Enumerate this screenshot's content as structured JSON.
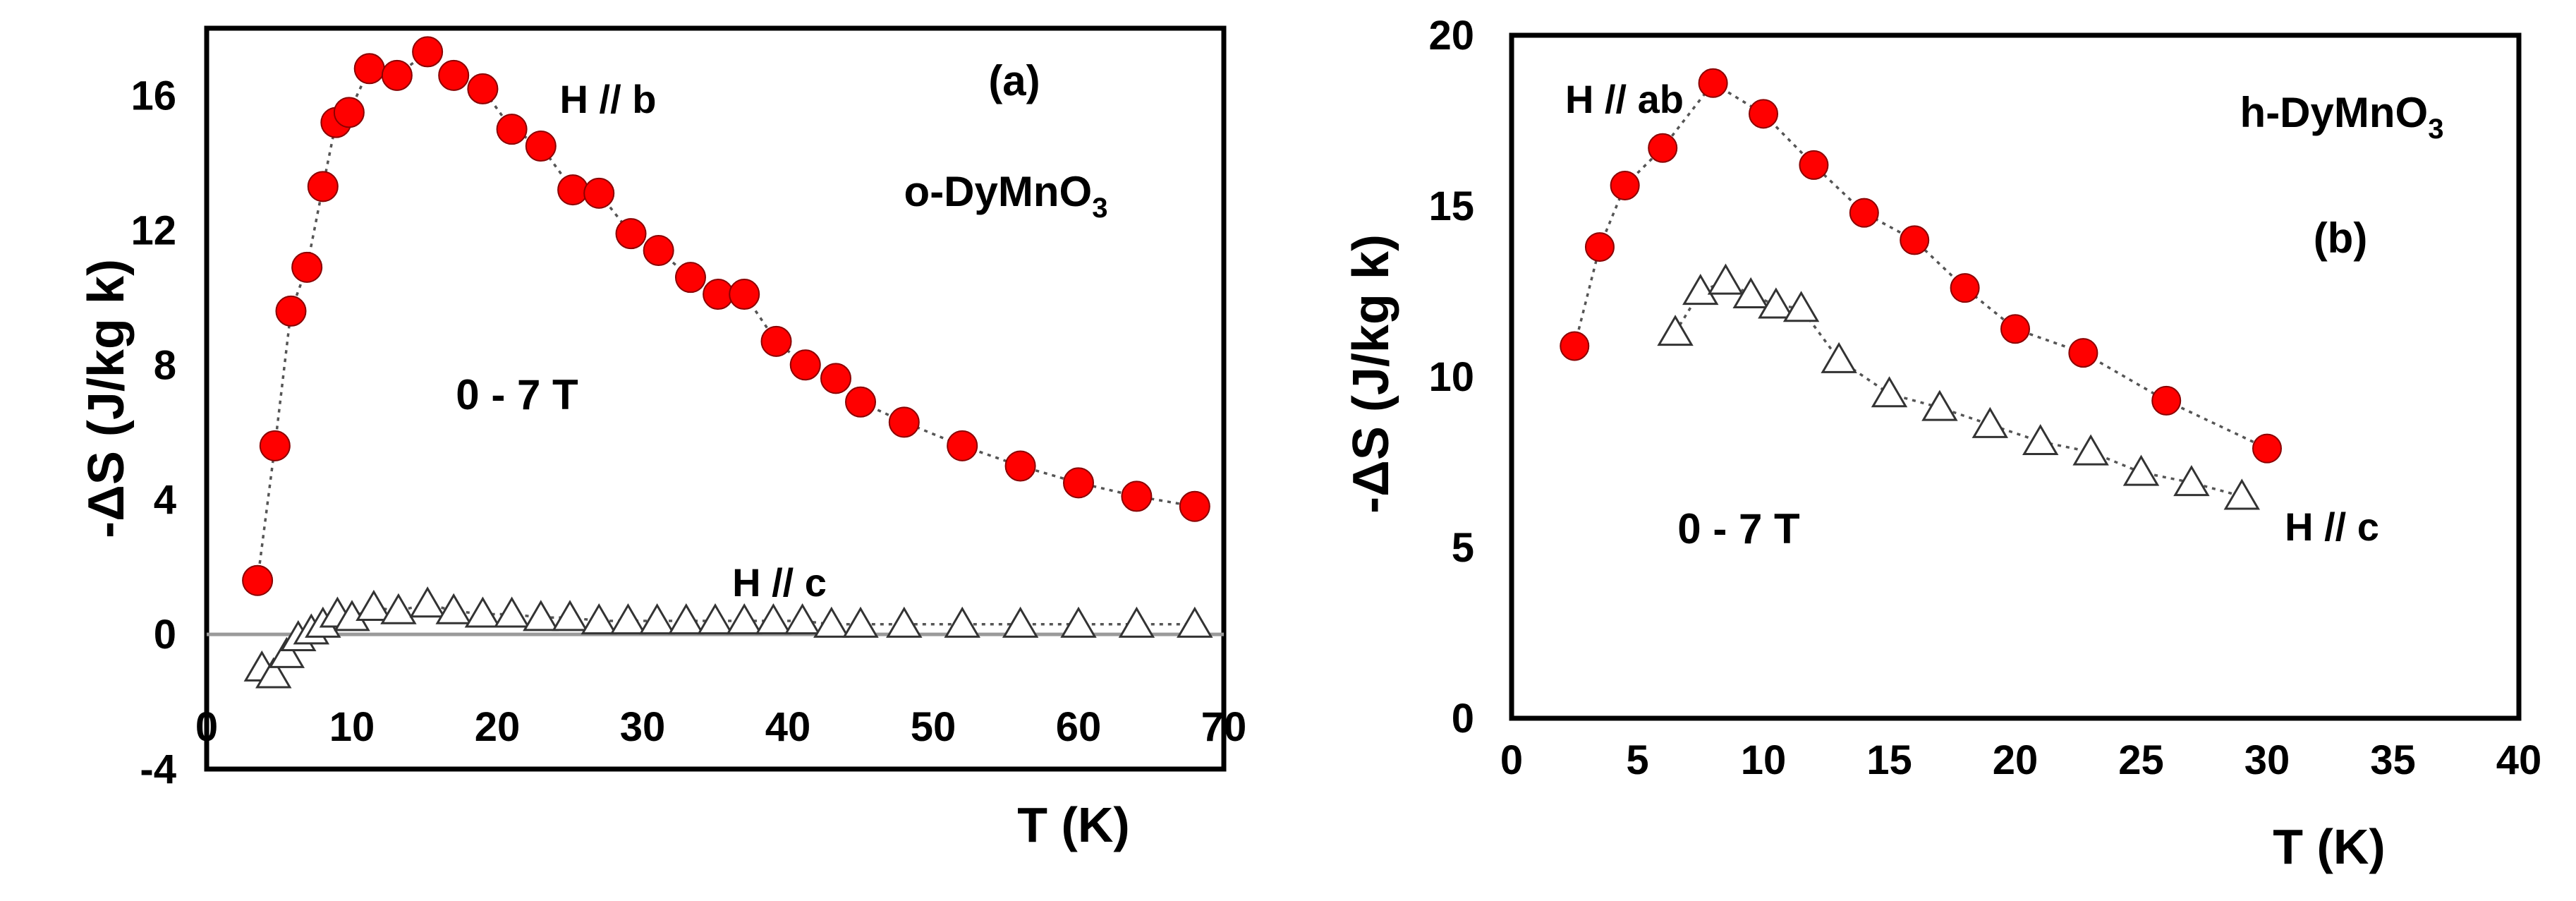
{
  "chart_data": [
    {
      "panel": "(a)",
      "type": "scatter",
      "xlabel": "T (K)",
      "ylabel": "-ΔS (J/kg k)",
      "xlim": [
        0,
        70
      ],
      "ylim": [
        -4,
        18
      ],
      "xticks": [
        0,
        10,
        20,
        30,
        40,
        50,
        60,
        70
      ],
      "yticks": [
        -4,
        0,
        4,
        8,
        12,
        16
      ],
      "zero_line": true,
      "annotations": {
        "panel_label": "(a)",
        "compound_prefix": "o-DyMnO",
        "compound_sub": "3",
        "field": "0 - 7 T"
      },
      "series": [
        {
          "name": "H // b",
          "marker": "circle",
          "color": "#ff0000",
          "x": [
            3.5,
            4.7,
            5.8,
            6.9,
            8.0,
            8.9,
            9.8,
            11.2,
            13.1,
            15.2,
            17.0,
            19.0,
            21.0,
            23.0,
            25.2,
            27.0,
            29.2,
            31.1,
            33.3,
            35.2,
            37.0,
            39.2,
            41.2,
            43.3,
            45.0,
            48.0,
            52.0,
            56.0,
            60.0,
            64.0,
            68.0
          ],
          "y": [
            1.6,
            5.6,
            9.6,
            10.9,
            13.3,
            15.2,
            15.5,
            16.8,
            16.6,
            17.3,
            16.6,
            16.2,
            15.0,
            14.5,
            13.2,
            13.1,
            11.9,
            11.4,
            10.6,
            10.1,
            10.1,
            8.7,
            8.0,
            7.6,
            6.9,
            6.3,
            5.6,
            5.0,
            4.5,
            4.1,
            3.8
          ]
        },
        {
          "name": "H // c",
          "marker": "triangle",
          "color": "#ffffff",
          "x": [
            3.8,
            4.6,
            5.5,
            6.3,
            7.2,
            8.0,
            9.0,
            10.0,
            11.5,
            13.2,
            15.2,
            17.0,
            19.0,
            21.0,
            23.0,
            25.0,
            27.0,
            29.0,
            31.0,
            33.0,
            35.0,
            37.0,
            39.0,
            41.0,
            43.0,
            45.0,
            48.0,
            52.0,
            56.0,
            60.0,
            64.0,
            68.0
          ],
          "y": [
            -1.0,
            -1.2,
            -0.6,
            -0.1,
            0.1,
            0.3,
            0.6,
            0.5,
            0.8,
            0.7,
            0.9,
            0.7,
            0.6,
            0.6,
            0.5,
            0.5,
            0.4,
            0.4,
            0.4,
            0.4,
            0.4,
            0.4,
            0.4,
            0.4,
            0.3,
            0.3,
            0.3,
            0.3,
            0.3,
            0.3,
            0.3,
            0.3
          ]
        }
      ]
    },
    {
      "panel": "(b)",
      "type": "scatter",
      "xlabel": "T (K)",
      "ylabel": "-ΔS (J/kg k)",
      "xlim": [
        0,
        40
      ],
      "ylim": [
        0,
        20
      ],
      "xticks": [
        0,
        5,
        10,
        15,
        20,
        25,
        30,
        35,
        40
      ],
      "yticks": [
        0,
        5,
        10,
        15,
        20
      ],
      "zero_line": false,
      "annotations": {
        "panel_label": "(b)",
        "compound_prefix": "h-DyMnO",
        "compound_sub": "3",
        "field": "0 - 7 T"
      },
      "series": [
        {
          "name": "H // ab",
          "marker": "circle",
          "color": "#ff0000",
          "x": [
            2.5,
            3.5,
            4.5,
            6.0,
            8.0,
            10.0,
            12.0,
            14.0,
            16.0,
            18.0,
            20.0,
            22.7,
            26.0,
            30.0
          ],
          "y": [
            10.9,
            13.8,
            15.6,
            16.7,
            18.6,
            17.7,
            16.2,
            14.8,
            14.0,
            12.6,
            11.4,
            10.7,
            9.3,
            7.9
          ]
        },
        {
          "name": "H // c",
          "marker": "triangle",
          "color": "#ffffff",
          "x": [
            6.5,
            7.5,
            8.5,
            9.5,
            10.5,
            11.5,
            13.0,
            15.0,
            17.0,
            19.0,
            21.0,
            23.0,
            25.0,
            27.0,
            29.0
          ],
          "y": [
            11.3,
            12.5,
            12.8,
            12.4,
            12.1,
            12.0,
            10.5,
            9.5,
            9.1,
            8.6,
            8.1,
            7.8,
            7.2,
            6.9,
            6.5
          ]
        }
      ]
    }
  ]
}
